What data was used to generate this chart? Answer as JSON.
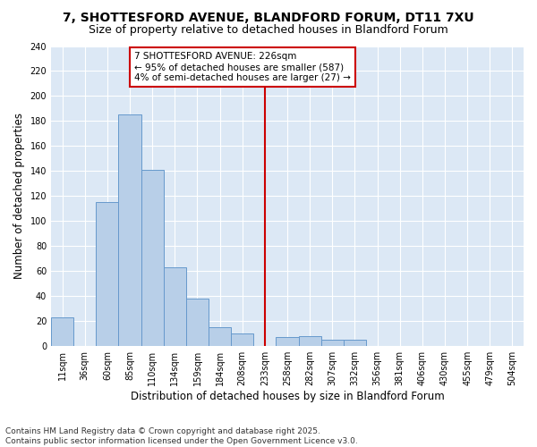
{
  "title1": "7, SHOTTESFORD AVENUE, BLANDFORD FORUM, DT11 7XU",
  "title2": "Size of property relative to detached houses in Blandford Forum",
  "xlabel": "Distribution of detached houses by size in Blandford Forum",
  "ylabel": "Number of detached properties",
  "categories": [
    "11sqm",
    "36sqm",
    "60sqm",
    "85sqm",
    "110sqm",
    "134sqm",
    "159sqm",
    "184sqm",
    "208sqm",
    "233sqm",
    "258sqm",
    "282sqm",
    "307sqm",
    "332sqm",
    "356sqm",
    "381sqm",
    "406sqm",
    "430sqm",
    "455sqm",
    "479sqm",
    "504sqm"
  ],
  "values": [
    23,
    0,
    115,
    185,
    141,
    63,
    38,
    15,
    10,
    0,
    7,
    8,
    5,
    5,
    0,
    0,
    0,
    0,
    0,
    0,
    0
  ],
  "bar_color": "#b8cfe8",
  "bar_edge_color": "#6699cc",
  "bar_linewidth": 0.7,
  "vline_index": 9,
  "vline_color": "#cc0000",
  "annotation_lines": [
    "7 SHOTTESFORD AVENUE: 226sqm",
    "← 95% of detached houses are smaller (587)",
    "4% of semi-detached houses are larger (27) →"
  ],
  "annotation_box_color": "#cc0000",
  "ylim": [
    0,
    240
  ],
  "yticks": [
    0,
    20,
    40,
    60,
    80,
    100,
    120,
    140,
    160,
    180,
    200,
    220,
    240
  ],
  "bg_color": "#dce8f5",
  "grid_color": "#ffffff",
  "footer_line1": "Contains HM Land Registry data © Crown copyright and database right 2025.",
  "footer_line2": "Contains public sector information licensed under the Open Government Licence v3.0.",
  "title_fontsize": 10,
  "subtitle_fontsize": 9,
  "tick_fontsize": 7,
  "axis_label_fontsize": 8.5,
  "footer_fontsize": 6.5
}
